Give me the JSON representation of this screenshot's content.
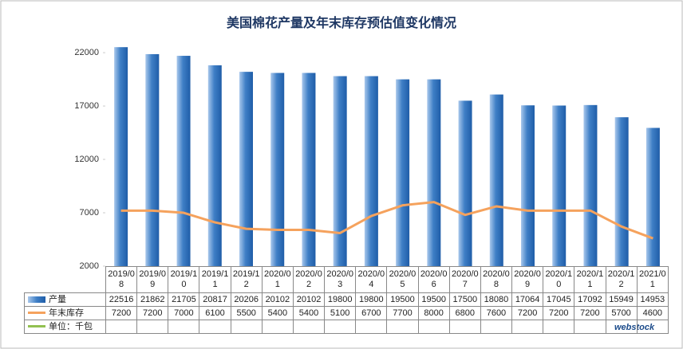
{
  "chart_data": {
    "type": "bar",
    "title": "美国棉花产量及年末库存预估值变化情况",
    "categories": [
      "2019/08",
      "2019/09",
      "2019/10",
      "2019/11",
      "2019/12",
      "2020/01",
      "2020/02",
      "2020/03",
      "2020/04",
      "2020/05",
      "2020/06",
      "2020/07",
      "2020/08",
      "2020/09",
      "2020/10",
      "2020/11",
      "2020/12",
      "2021/01"
    ],
    "series": [
      {
        "name": "产量",
        "type": "bar",
        "color": "#3f7fc6",
        "values": [
          22516,
          21862,
          21705,
          20817,
          20206,
          20102,
          20102,
          19800,
          19800,
          19500,
          19500,
          17500,
          18080,
          17064,
          17045,
          17092,
          15949,
          14953
        ]
      },
      {
        "name": "年末库存",
        "type": "line",
        "color": "#f5a25d",
        "values": [
          7200,
          7200,
          7000,
          6100,
          5500,
          5400,
          5400,
          5100,
          6700,
          7700,
          8000,
          6800,
          7600,
          7200,
          7200,
          7200,
          5700,
          4600
        ]
      }
    ],
    "unit": "单位：千包",
    "unit_color": "#92c050",
    "watermark": "webstock",
    "ylim": [
      2000,
      23500
    ],
    "yticks": [
      2000,
      7000,
      12000,
      17000,
      22000
    ],
    "grid": false
  }
}
